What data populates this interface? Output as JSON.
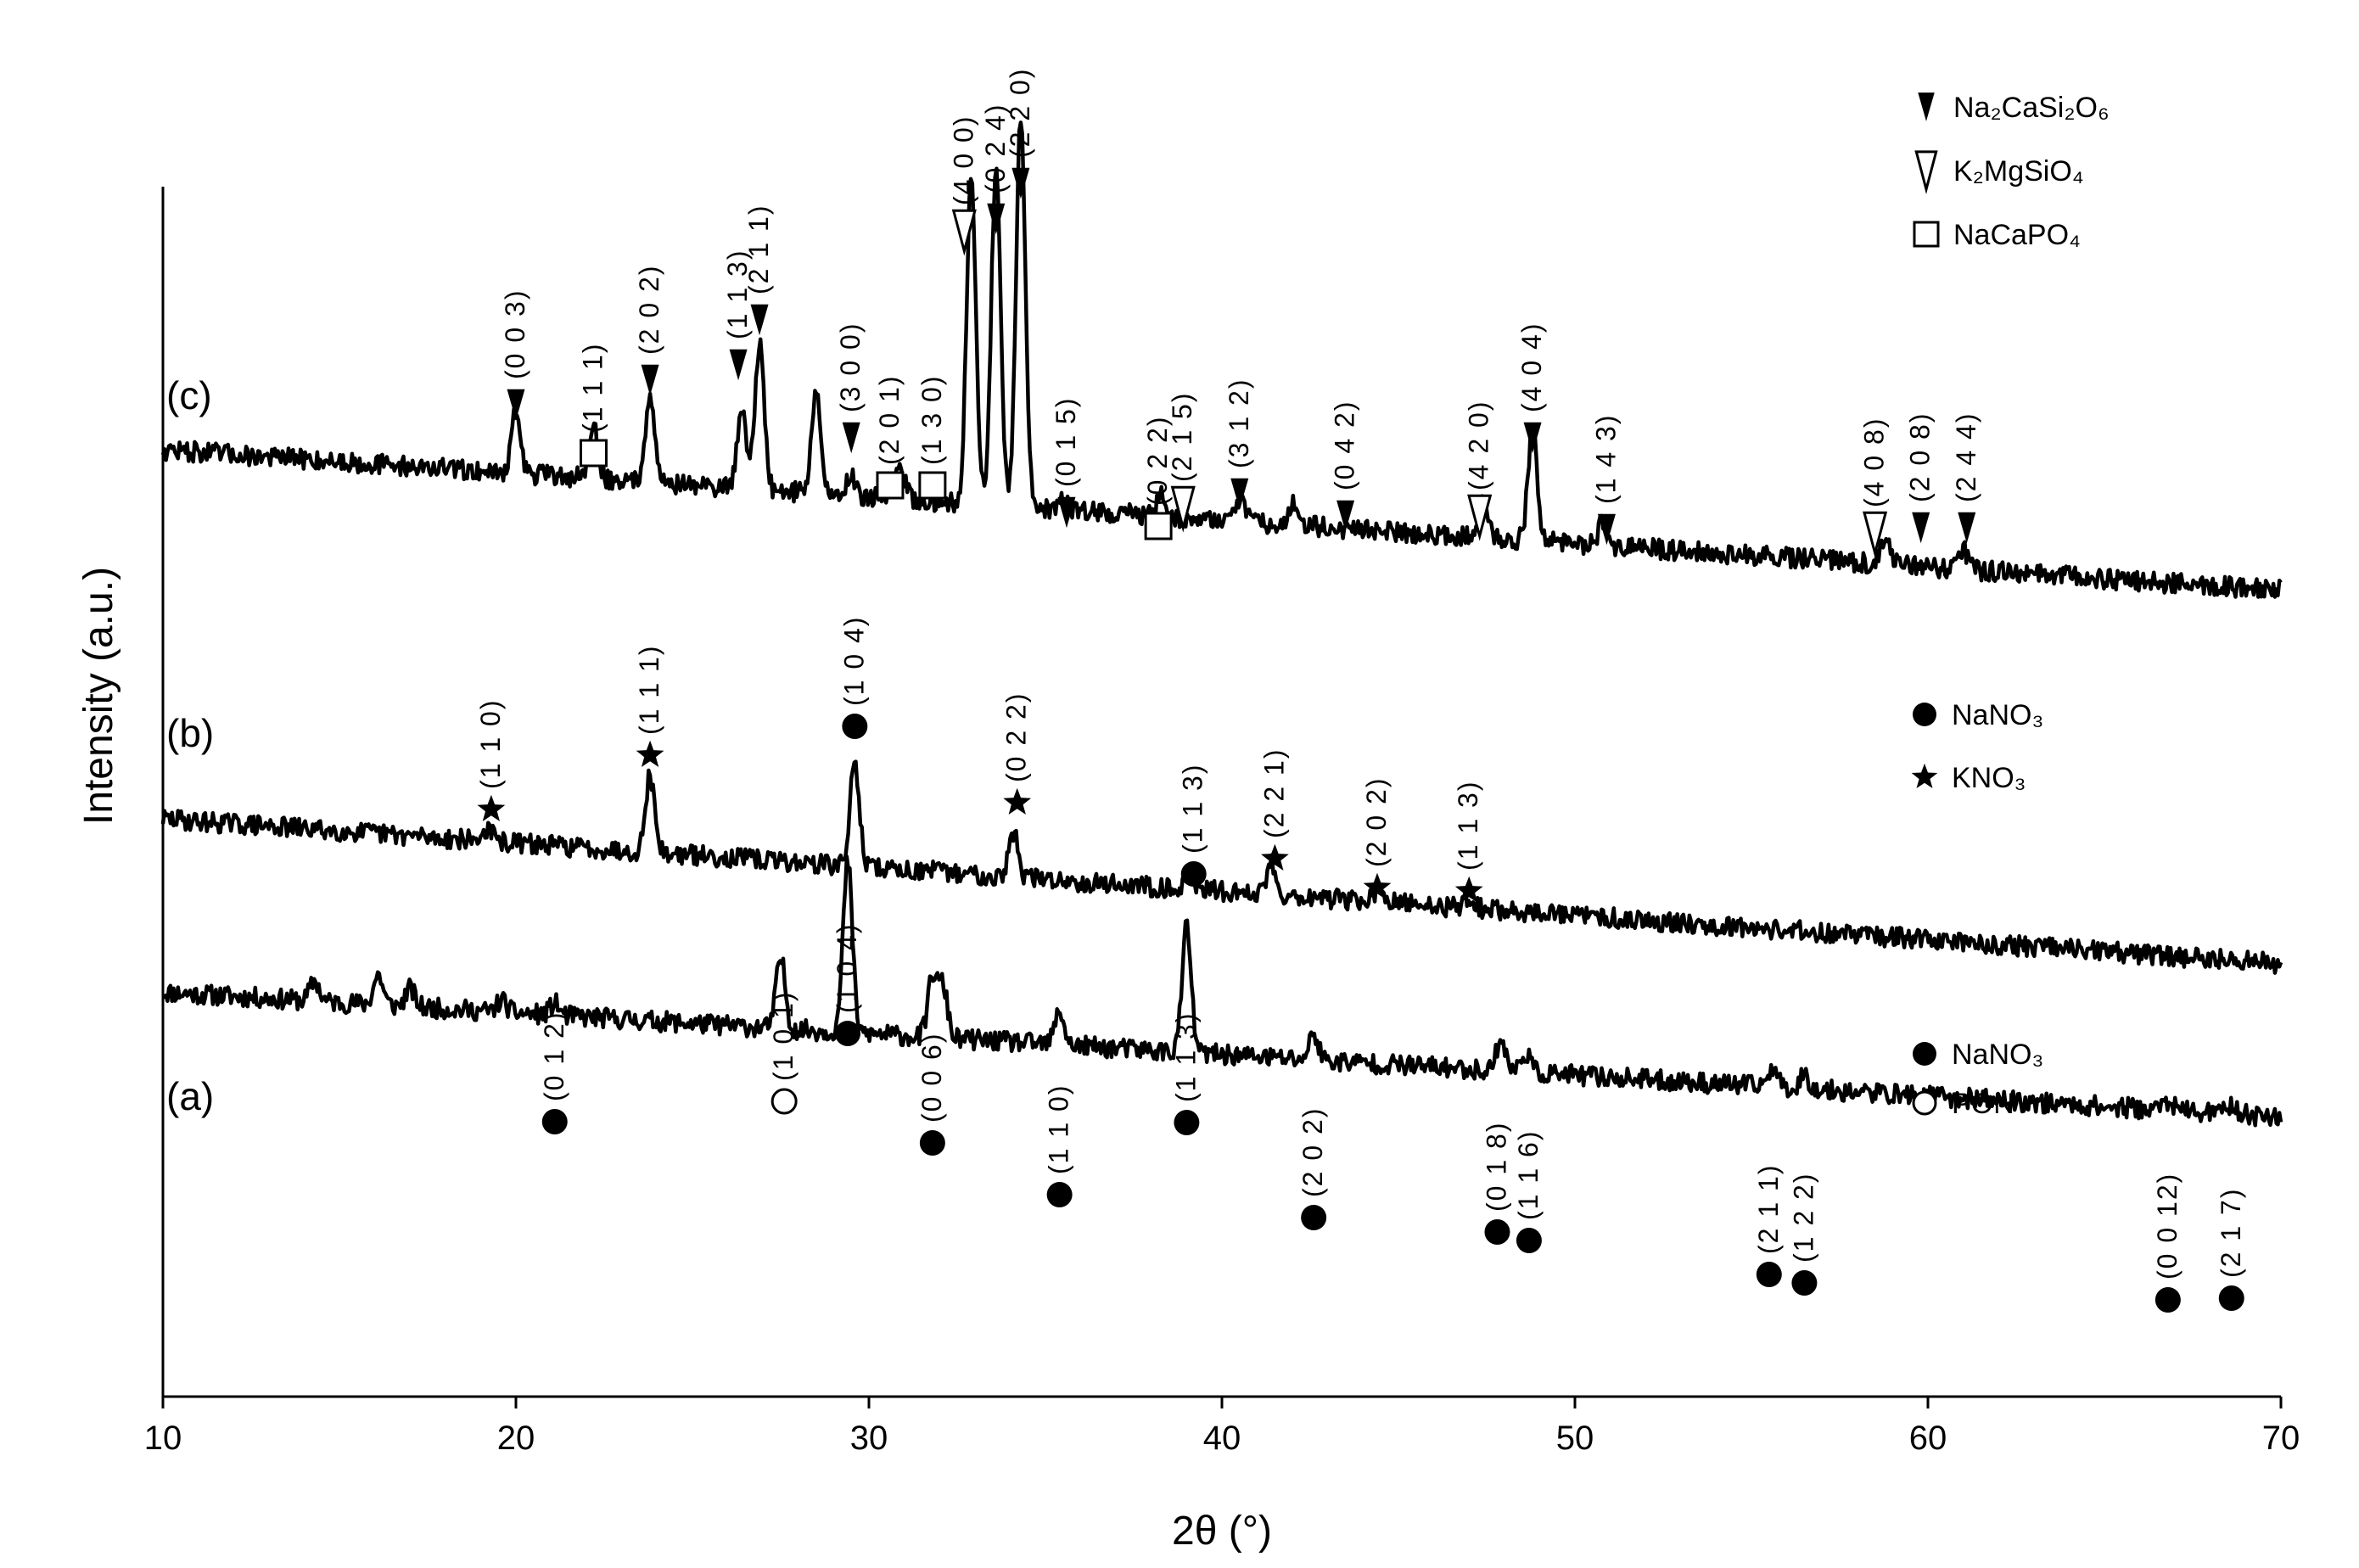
{
  "chart_data": {
    "type": "line",
    "title": "",
    "xlabel": "2θ (°)",
    "ylabel": "Intensity (a.u.)",
    "xlim": [
      10,
      70
    ],
    "x_ticks": [
      "10",
      "20",
      "30",
      "40",
      "50",
      "60",
      "70"
    ],
    "grid": false,
    "series": [
      {
        "label": "(a)",
        "baseline_start": 0.72,
        "baseline_end": 0.1,
        "noise": 0.05,
        "peaks": [
          {
            "x": 14.3,
            "h": 0.1
          },
          {
            "x": 16.1,
            "h": 0.15
          },
          {
            "x": 17.0,
            "h": 0.09
          },
          {
            "x": 19.6,
            "h": 0.06
          },
          {
            "x": 21.1,
            "h": 0.06
          },
          {
            "x": 27.5,
            "h": 0.35
          },
          {
            "x": 29.4,
            "h": 0.85
          },
          {
            "x": 31.8,
            "h": 0.3
          },
          {
            "x": 32.1,
            "h": 0.25
          },
          {
            "x": 35.4,
            "h": 0.17
          },
          {
            "x": 39.0,
            "h": 0.62
          },
          {
            "x": 42.6,
            "h": 0.13
          },
          {
            "x": 47.9,
            "h": 0.16
          },
          {
            "x": 48.6,
            "h": 0.1
          },
          {
            "x": 55.6,
            "h": 0.1
          },
          {
            "x": 56.5,
            "h": 0.07
          },
          {
            "x": 66.8,
            "h": 0.05
          },
          {
            "x": 68.6,
            "h": 0.05
          }
        ]
      },
      {
        "label": "(b)",
        "baseline_start": 0.78,
        "baseline_end": 0.06,
        "noise": 0.05,
        "peaks": [
          {
            "x": 19.2,
            "h": 0.06
          },
          {
            "x": 23.8,
            "h": 0.38
          },
          {
            "x": 29.6,
            "h": 0.52
          },
          {
            "x": 34.1,
            "h": 0.22
          },
          {
            "x": 39.1,
            "h": 0.08
          },
          {
            "x": 41.4,
            "h": 0.16
          },
          {
            "x": 44.4,
            "h": 0.05
          },
          {
            "x": 47.0,
            "h": 0.06
          }
        ]
      },
      {
        "label": "(c)",
        "baseline_start": 0.78,
        "baseline_end": 0.08,
        "noise": 0.05,
        "peaks": [
          {
            "x": 20.0,
            "h": 0.3
          },
          {
            "x": 22.2,
            "h": 0.25
          },
          {
            "x": 23.8,
            "h": 0.45
          },
          {
            "x": 26.4,
            "h": 0.4
          },
          {
            "x": 26.9,
            "h": 0.72
          },
          {
            "x": 28.5,
            "h": 0.5
          },
          {
            "x": 29.5,
            "h": 0.1
          },
          {
            "x": 30.9,
            "h": 0.15
          },
          {
            "x": 32.9,
            "h": 1.65
          },
          {
            "x": 33.6,
            "h": 1.7
          },
          {
            "x": 34.3,
            "h": 1.92
          },
          {
            "x": 35.5,
            "h": 0.06
          },
          {
            "x": 38.3,
            "h": 0.1
          },
          {
            "x": 40.5,
            "h": 0.12
          },
          {
            "x": 42.0,
            "h": 0.1
          },
          {
            "x": 47.4,
            "h": 0.18
          },
          {
            "x": 48.8,
            "h": 0.56
          },
          {
            "x": 50.8,
            "h": 0.12
          },
          {
            "x": 58.8,
            "h": 0.14
          },
          {
            "x": 61.0,
            "h": 0.1
          }
        ]
      }
    ],
    "annotations": [
      {
        "curve": "a",
        "x": 21.1,
        "marker": "filled-circle",
        "label": "(0 1 2)"
      },
      {
        "curve": "a",
        "x": 27.6,
        "marker": "open-circle",
        "label": "(1 0 1)"
      },
      {
        "curve": "a",
        "x": 29.4,
        "marker": "filled-circle",
        "label": "(1 0 4)"
      },
      {
        "curve": "a",
        "x": 31.8,
        "marker": "filled-circle",
        "label": "(0 0 6)"
      },
      {
        "curve": "a",
        "x": 35.4,
        "marker": "filled-circle",
        "label": "(1 1 0)"
      },
      {
        "curve": "a",
        "x": 39.0,
        "marker": "filled-circle",
        "label": "(1 1 3)"
      },
      {
        "curve": "a",
        "x": 42.6,
        "marker": "filled-circle",
        "label": "(2 0 2)"
      },
      {
        "curve": "a",
        "x": 47.8,
        "marker": "filled-circle",
        "label": "(0 1 8)"
      },
      {
        "curve": "a",
        "x": 48.7,
        "marker": "filled-circle",
        "label": "(1 1 6)"
      },
      {
        "curve": "a",
        "x": 55.5,
        "marker": "filled-circle",
        "label": "(2 1 1)"
      },
      {
        "curve": "a",
        "x": 56.5,
        "marker": "filled-circle",
        "label": "(1 2 2)"
      },
      {
        "curve": "a",
        "x": 66.8,
        "marker": "filled-circle",
        "label": "(0 0 12)"
      },
      {
        "curve": "a",
        "x": 68.6,
        "marker": "filled-circle",
        "label": "(2 1 7)"
      },
      {
        "curve": "b",
        "x": 19.3,
        "marker": "star",
        "label": "(1 1 0)"
      },
      {
        "curve": "b",
        "x": 23.8,
        "marker": "star",
        "label": "(1 1 1)"
      },
      {
        "curve": "b",
        "x": 29.6,
        "marker": "filled-circle",
        "label": "(1 0 4)"
      },
      {
        "curve": "b",
        "x": 34.2,
        "marker": "star",
        "label": "(0 2 2)"
      },
      {
        "curve": "b",
        "x": 39.2,
        "marker": "filled-circle",
        "label": "(1 1 3)"
      },
      {
        "curve": "b",
        "x": 41.5,
        "marker": "star",
        "label": "(2 2 1)"
      },
      {
        "curve": "b",
        "x": 44.4,
        "marker": "star",
        "label": "(2 0 2)"
      },
      {
        "curve": "b",
        "x": 47.0,
        "marker": "star",
        "label": "(1 1 3)"
      },
      {
        "curve": "c",
        "x": 20.0,
        "marker": "filled-triangle",
        "label": "(0 0 3)"
      },
      {
        "curve": "c",
        "x": 22.2,
        "marker": "open-square",
        "label": "(1 1 1)"
      },
      {
        "curve": "c",
        "x": 23.8,
        "marker": "filled-triangle",
        "label": "(2 0 2)"
      },
      {
        "curve": "c",
        "x": 26.3,
        "marker": "filled-triangle",
        "label": "(1 1 3)"
      },
      {
        "curve": "c",
        "x": 26.9,
        "marker": "filled-triangle",
        "label": "(2 1 1)"
      },
      {
        "curve": "c",
        "x": 29.5,
        "marker": "filled-triangle",
        "label": "(3 0 0)"
      },
      {
        "curve": "c",
        "x": 30.6,
        "marker": "open-square",
        "label": "(2 0 1)"
      },
      {
        "curve": "c",
        "x": 31.8,
        "marker": "open-square",
        "label": "(1 3 0)"
      },
      {
        "curve": "c",
        "x": 32.7,
        "marker": "open-triangle",
        "label": "(4 0 0)"
      },
      {
        "curve": "c",
        "x": 33.6,
        "marker": "filled-triangle",
        "label": "(0 2 4)"
      },
      {
        "curve": "c",
        "x": 34.3,
        "marker": "filled-triangle",
        "label": "(2 2 0)"
      },
      {
        "curve": "c",
        "x": 35.6,
        "marker": "filled-triangle",
        "label": "(0 1 5)"
      },
      {
        "curve": "c",
        "x": 38.2,
        "marker": "open-square",
        "label": "(0 2 2)"
      },
      {
        "curve": "c",
        "x": 38.9,
        "marker": "open-triangle",
        "label": "(2 1 5)"
      },
      {
        "curve": "c",
        "x": 40.5,
        "marker": "filled-triangle",
        "label": "(3 1 2)"
      },
      {
        "curve": "c",
        "x": 43.5,
        "marker": "filled-triangle",
        "label": "(0 4 2)"
      },
      {
        "curve": "c",
        "x": 47.3,
        "marker": "open-triangle",
        "label": "(4 2 0)"
      },
      {
        "curve": "c",
        "x": 48.8,
        "marker": "filled-triangle",
        "label": "(4 0 4)"
      },
      {
        "curve": "c",
        "x": 50.9,
        "marker": "filled-triangle",
        "label": "(1 4 3)"
      },
      {
        "curve": "c",
        "x": 58.5,
        "marker": "open-triangle",
        "label": "(4 0 8)"
      },
      {
        "curve": "c",
        "x": 59.8,
        "marker": "filled-triangle",
        "label": "(2 0 8)"
      },
      {
        "curve": "c",
        "x": 61.1,
        "marker": "filled-triangle",
        "label": "(2 4 4)"
      }
    ],
    "legends": [
      {
        "group": "c",
        "placement": "top-right",
        "items": [
          {
            "marker": "filled-triangle",
            "text": "Na₂CaSi₂O₆"
          },
          {
            "marker": "open-triangle",
            "text": "K₂MgSiO₄"
          },
          {
            "marker": "open-square",
            "text": "NaCaPO₄"
          }
        ]
      },
      {
        "group": "b",
        "placement": "right",
        "items": [
          {
            "marker": "filled-circle",
            "text": "NaNO₃"
          },
          {
            "marker": "star",
            "text": "KNO₃"
          }
        ]
      },
      {
        "group": "a",
        "placement": "right",
        "items": [
          {
            "marker": "filled-circle",
            "text": "NaNO₃"
          },
          {
            "marker": "open-circle",
            "text": "PON"
          }
        ]
      }
    ]
  }
}
